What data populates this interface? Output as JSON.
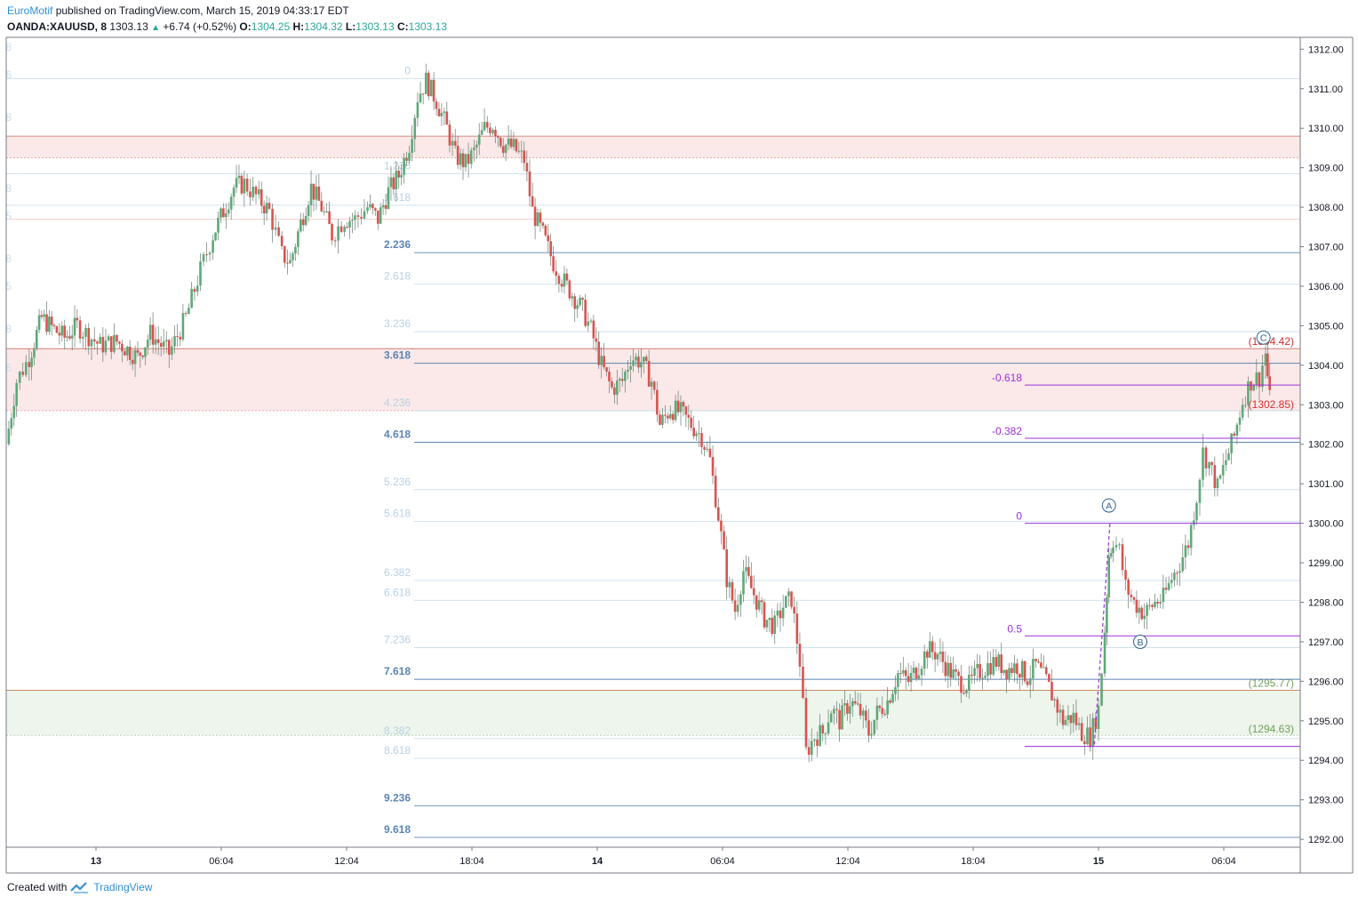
{
  "header": {
    "author": "EuroMotif",
    "published_text": "published on TradingView.com, March 15, 2019 04:33:17 EDT",
    "symbol": "OANDA:XAUUSD, 8",
    "last": "1303.13",
    "change": "+6.74 (+0.52%)",
    "open_label": "O:",
    "open": "1304.25",
    "high_label": "H:",
    "high": "1304.32",
    "low_label": "L:",
    "low": "1303.13",
    "close_label": "C:",
    "close": "1303.13"
  },
  "footer": {
    "created_with": "Created with",
    "brand": "TradingView"
  },
  "colors": {
    "up": "#26a69a",
    "down": "#ef5350",
    "up_candle": "#5fa878",
    "down_candle": "#d9534f",
    "fib_blue": "#90b4d8",
    "fib_strong": "#5b84b1",
    "purple": "#9b30d9",
    "red_zone": "#fbe9e9",
    "green_zone": "#edf5ec",
    "red_text": "#d32f2f",
    "green_text": "#6fa05a"
  },
  "chart_data": {
    "type": "candlestick",
    "timeframe": "8",
    "y_axis": {
      "ylim": [
        1291.8,
        1312.3
      ],
      "ticks": [
        "1292.00",
        "1293.00",
        "1294.00",
        "1295.00",
        "1296.00",
        "1297.00",
        "1298.00",
        "1299.00",
        "1300.00",
        "1301.00",
        "1302.00",
        "1303.00",
        "1304.00",
        "1305.00",
        "1306.00",
        "1307.00",
        "1308.00",
        "1309.00",
        "1310.00",
        "1311.00",
        "1312.00"
      ]
    },
    "x_axis": {
      "ticks": [
        {
          "label": "13",
          "bold": true,
          "t": 0
        },
        {
          "label": "06:04",
          "bold": false,
          "t": 6
        },
        {
          "label": "12:04",
          "bold": false,
          "t": 12
        },
        {
          "label": "18:04",
          "bold": false,
          "t": 18
        },
        {
          "label": "14",
          "bold": true,
          "t": 24
        },
        {
          "label": "06:04",
          "bold": false,
          "t": 30
        },
        {
          "label": "12:04",
          "bold": false,
          "t": 36
        },
        {
          "label": "18:04",
          "bold": false,
          "t": 42
        },
        {
          "label": "15",
          "bold": true,
          "t": 48
        },
        {
          "label": "06:04",
          "bold": false,
          "t": 54
        }
      ]
    },
    "price_path": [
      [
        -4.3,
        1302.0
      ],
      [
        -3.8,
        1303.6
      ],
      [
        -3.2,
        1304.2
      ],
      [
        -2.6,
        1305.2
      ],
      [
        -2.0,
        1304.9
      ],
      [
        -1.5,
        1304.7
      ],
      [
        -0.9,
        1305.0
      ],
      [
        0.2,
        1304.5
      ],
      [
        1.0,
        1304.6
      ],
      [
        2.0,
        1304.2
      ],
      [
        2.6,
        1304.8
      ],
      [
        3.5,
        1304.3
      ],
      [
        4.3,
        1305.2
      ],
      [
        5.0,
        1306.4
      ],
      [
        5.6,
        1307.3
      ],
      [
        6.1,
        1307.9
      ],
      [
        6.6,
        1308.5
      ],
      [
        7.1,
        1308.6
      ],
      [
        7.8,
        1308.2
      ],
      [
        8.3,
        1307.9
      ],
      [
        8.9,
        1306.8
      ],
      [
        9.3,
        1306.6
      ],
      [
        9.8,
        1307.6
      ],
      [
        10.3,
        1308.5
      ],
      [
        10.8,
        1308.0
      ],
      [
        11.3,
        1307.3
      ],
      [
        11.9,
        1307.7
      ],
      [
        12.4,
        1307.7
      ],
      [
        13.0,
        1308.0
      ],
      [
        13.5,
        1307.7
      ],
      [
        14.0,
        1308.4
      ],
      [
        14.5,
        1308.8
      ],
      [
        15.0,
        1309.6
      ],
      [
        15.4,
        1310.8
      ],
      [
        15.8,
        1311.2
      ],
      [
        16.3,
        1310.7
      ],
      [
        16.8,
        1310.0
      ],
      [
        17.2,
        1309.3
      ],
      [
        17.7,
        1309.1
      ],
      [
        18.1,
        1309.4
      ],
      [
        18.6,
        1310.0
      ],
      [
        19.0,
        1310.1
      ],
      [
        19.5,
        1309.6
      ],
      [
        20.0,
        1309.5
      ],
      [
        20.5,
        1309.2
      ],
      [
        20.9,
        1307.9
      ],
      [
        21.4,
        1307.3
      ],
      [
        21.9,
        1306.6
      ],
      [
        22.3,
        1306.2
      ],
      [
        22.8,
        1305.8
      ],
      [
        23.3,
        1305.4
      ],
      [
        23.7,
        1304.9
      ],
      [
        24.2,
        1304.0
      ],
      [
        24.7,
        1303.4
      ],
      [
        25.2,
        1303.6
      ],
      [
        25.6,
        1304.2
      ],
      [
        26.1,
        1304.1
      ],
      [
        26.6,
        1303.6
      ],
      [
        27.0,
        1302.5
      ],
      [
        27.5,
        1302.9
      ],
      [
        28.0,
        1302.8
      ],
      [
        28.5,
        1302.5
      ],
      [
        29.0,
        1302.2
      ],
      [
        29.4,
        1301.6
      ],
      [
        29.8,
        1300.2
      ],
      [
        30.2,
        1298.6
      ],
      [
        30.6,
        1297.8
      ],
      [
        31.0,
        1298.8
      ],
      [
        31.5,
        1298.2
      ],
      [
        32.0,
        1297.6
      ],
      [
        32.5,
        1297.4
      ],
      [
        32.9,
        1297.9
      ],
      [
        33.3,
        1298.1
      ],
      [
        33.7,
        1296.5
      ],
      [
        34.0,
        1294.2
      ],
      [
        34.4,
        1294.6
      ],
      [
        34.8,
        1294.7
      ],
      [
        35.2,
        1295.3
      ],
      [
        35.6,
        1295.0
      ],
      [
        36.1,
        1295.5
      ],
      [
        36.6,
        1295.2
      ],
      [
        37.0,
        1294.7
      ],
      [
        37.4,
        1295.2
      ],
      [
        37.9,
        1295.5
      ],
      [
        38.4,
        1296.2
      ],
      [
        38.9,
        1296.0
      ],
      [
        39.4,
        1296.4
      ],
      [
        39.8,
        1296.8
      ],
      [
        40.3,
        1296.7
      ],
      [
        40.8,
        1296.3
      ],
      [
        41.3,
        1296.0
      ],
      [
        41.8,
        1295.9
      ],
      [
        42.2,
        1296.2
      ],
      [
        42.7,
        1296.4
      ],
      [
        43.1,
        1296.5
      ],
      [
        43.6,
        1296.3
      ],
      [
        44.1,
        1296.4
      ],
      [
        44.6,
        1296.1
      ],
      [
        45.0,
        1296.4
      ],
      [
        45.5,
        1296.0
      ],
      [
        45.9,
        1295.5
      ],
      [
        46.3,
        1295.0
      ],
      [
        46.8,
        1295.1
      ],
      [
        47.2,
        1294.7
      ],
      [
        47.6,
        1294.6
      ],
      [
        48.0,
        1295.3
      ],
      [
        48.3,
        1297.3
      ],
      [
        48.5,
        1299.2
      ],
      [
        48.7,
        1299.6
      ],
      [
        49.0,
        1299.3
      ],
      [
        49.3,
        1298.4
      ],
      [
        49.7,
        1298.0
      ],
      [
        50.2,
        1297.7
      ],
      [
        50.7,
        1298.0
      ],
      [
        51.1,
        1298.1
      ],
      [
        51.5,
        1298.6
      ],
      [
        51.9,
        1299.0
      ],
      [
        52.3,
        1299.5
      ],
      [
        52.7,
        1300.7
      ],
      [
        53.0,
        1301.8
      ],
      [
        53.3,
        1301.5
      ],
      [
        53.7,
        1300.9
      ],
      [
        54.1,
        1301.6
      ],
      [
        54.5,
        1302.2
      ],
      [
        54.9,
        1303.1
      ],
      [
        55.3,
        1303.6
      ],
      [
        55.7,
        1303.7
      ],
      [
        56.0,
        1304.3
      ],
      [
        56.2,
        1303.13
      ]
    ],
    "fib_extension_levels": [
      {
        "label": "0",
        "price": 1311.25,
        "label_visible": true
      },
      {
        "label": "1.236",
        "price": 1308.85,
        "label_visible": true
      },
      {
        "label": "1.618",
        "price": 1308.05,
        "label_visible": true
      },
      {
        "label": "2.236",
        "price": 1306.85,
        "label_visible": true
      },
      {
        "label": "2.618",
        "price": 1306.05,
        "label_visible": true
      },
      {
        "label": "3.236",
        "price": 1304.85,
        "label_visible": true
      },
      {
        "label": "3.618",
        "price": 1304.05,
        "label_visible": true
      },
      {
        "label": "4.236",
        "price": 1302.85,
        "label_visible": true
      },
      {
        "label": "4.618",
        "price": 1302.05,
        "label_visible": true
      },
      {
        "label": "5.236",
        "price": 1300.85,
        "label_visible": true
      },
      {
        "label": "5.618",
        "price": 1300.05,
        "label_visible": true
      },
      {
        "label": "6.382",
        "price": 1298.55,
        "label_visible": true
      },
      {
        "label": "6.618",
        "price": 1298.05,
        "label_visible": true
      },
      {
        "label": "7.236",
        "price": 1296.85,
        "label_visible": true
      },
      {
        "label": "7.618",
        "price": 1296.05,
        "label_visible": true
      },
      {
        "label": "8.382",
        "price": 1294.55,
        "label_visible": true
      },
      {
        "label": "8.618",
        "price": 1294.05,
        "label_visible": true
      },
      {
        "label": "9.236",
        "price": 1292.85,
        "label_visible": true
      },
      {
        "label": "9.618",
        "price": 1292.05,
        "label_visible": true
      }
    ],
    "purple_fib_levels": [
      {
        "label": "-0.618",
        "price": 1303.5
      },
      {
        "label": "-0.382",
        "price": 1302.15
      },
      {
        "label": "0",
        "price": 1300.0
      },
      {
        "label": "0.5",
        "price": 1297.15
      },
      {
        "label": "",
        "price": 1294.35
      }
    ],
    "zones": [
      {
        "color": "red",
        "top": 1309.8,
        "bottom": 1309.25,
        "label_top": "",
        "label_bottom": ""
      },
      {
        "color": "red",
        "top": 1304.42,
        "bottom": 1302.85,
        "label_top": "(1304.42)",
        "label_bottom": "(1302.85)"
      },
      {
        "color": "green",
        "top": 1295.77,
        "bottom": 1294.63,
        "label_top": "(1295.77)",
        "label_bottom": "(1294.63)"
      }
    ],
    "extra_lines": [
      {
        "price": 1307.7,
        "color": "#f3c9c9"
      }
    ],
    "wave_labels": [
      {
        "label": "A",
        "t": 48.5,
        "price": 1300.45
      },
      {
        "label": "B",
        "t": 50.0,
        "price": 1297.0
      },
      {
        "label": "C",
        "t": 55.9,
        "price": 1304.7
      }
    ],
    "left_clipped_labels": [
      "8",
      "6",
      "8",
      "8",
      "5",
      "8",
      "5",
      "8",
      "6"
    ]
  }
}
